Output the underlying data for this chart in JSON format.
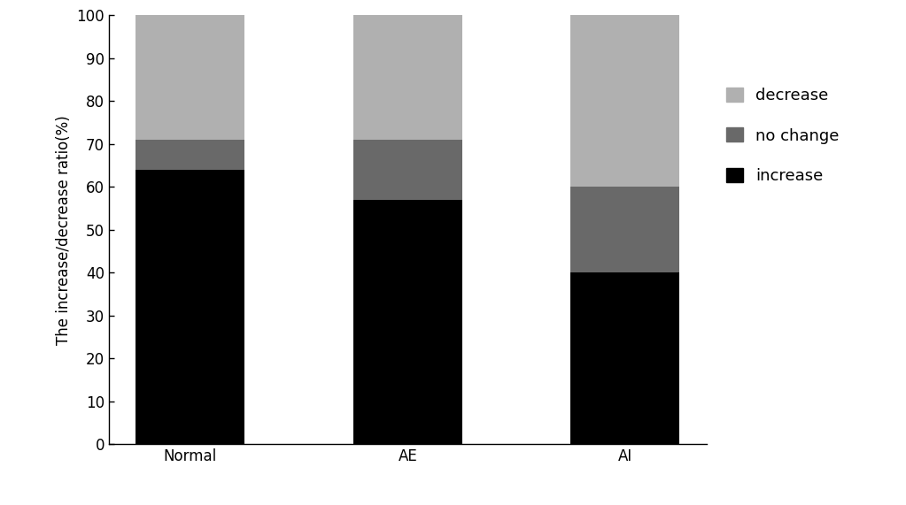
{
  "categories": [
    "Normal",
    "AE",
    "AI"
  ],
  "increase": [
    64,
    57,
    40
  ],
  "no_change": [
    7,
    14,
    20
  ],
  "decrease": [
    29,
    29,
    40
  ],
  "colors": {
    "increase": "#000000",
    "no_change": "#696969",
    "decrease": "#b0b0b0"
  },
  "ylabel": "The increase/decrease ratio(%)",
  "ylim": [
    0,
    100
  ],
  "yticks": [
    0,
    10,
    20,
    30,
    40,
    50,
    60,
    70,
    80,
    90,
    100
  ],
  "legend_labels": [
    "decrease",
    "no change",
    "increase"
  ],
  "bar_width": 0.5,
  "background_color": "#ffffff",
  "ylabel_fontsize": 12,
  "tick_fontsize": 12,
  "legend_fontsize": 13
}
